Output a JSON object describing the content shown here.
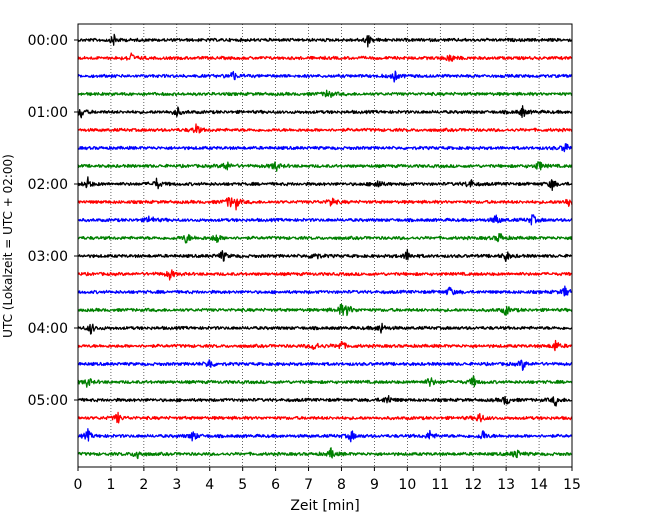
{
  "chart_data": {
    "type": "line",
    "title": "",
    "xlabel": "Zeit  [min]",
    "ylabel": "UTC (Lokalzeit = UTC + 02:00)",
    "xlim": [
      0,
      15
    ],
    "x_ticks": [
      0,
      1,
      2,
      3,
      4,
      5,
      6,
      7,
      8,
      9,
      10,
      11,
      12,
      13,
      14,
      15
    ],
    "x_tick_labels": [
      "0",
      "1",
      "2",
      "3",
      "4",
      "5",
      "6",
      "7",
      "8",
      "9",
      "10",
      "11",
      "12",
      "13",
      "14",
      "15"
    ],
    "grid": "vertical dotted lines at each minute",
    "y_tick_labels": [
      {
        "row": 0,
        "label": "00:00"
      },
      {
        "row": 4,
        "label": "01:00"
      },
      {
        "row": 8,
        "label": "02:00"
      },
      {
        "row": 12,
        "label": "03:00"
      },
      {
        "row": 16,
        "label": "04:00"
      },
      {
        "row": 20,
        "label": "05:00"
      }
    ],
    "trace_colors": [
      "#000000",
      "#ff0000",
      "#0000ff",
      "#008000"
    ],
    "rows": [
      {
        "start": "00:00",
        "color": "#000000",
        "events": [
          1.1,
          8.8
        ]
      },
      {
        "start": "00:15",
        "color": "#ff0000",
        "events": [
          1.6,
          11.3
        ]
      },
      {
        "start": "00:30",
        "color": "#0000ff",
        "events": [
          4.7,
          9.6
        ]
      },
      {
        "start": "00:45",
        "color": "#008000",
        "events": [
          7.6
        ]
      },
      {
        "start": "01:00",
        "color": "#000000",
        "events": [
          0.1,
          3.0,
          13.5
        ]
      },
      {
        "start": "01:15",
        "color": "#ff0000",
        "events": [
          3.6
        ]
      },
      {
        "start": "01:30",
        "color": "#0000ff",
        "events": [
          14.8
        ]
      },
      {
        "start": "01:45",
        "color": "#008000",
        "events": [
          4.5,
          6.0,
          14.0
        ]
      },
      {
        "start": "02:00",
        "color": "#000000",
        "events": [
          0.3,
          2.4,
          9.1,
          11.9,
          14.4
        ]
      },
      {
        "start": "02:15",
        "color": "#ff0000",
        "events": [
          4.6,
          4.8,
          7.7,
          14.9
        ]
      },
      {
        "start": "02:30",
        "color": "#0000ff",
        "events": [
          2.2,
          12.7,
          13.8
        ]
      },
      {
        "start": "02:45",
        "color": "#008000",
        "events": [
          3.3,
          4.2,
          12.8
        ]
      },
      {
        "start": "03:00",
        "color": "#000000",
        "events": [
          4.4,
          7.2,
          10.0,
          13.0
        ]
      },
      {
        "start": "03:15",
        "color": "#ff0000",
        "events": [
          2.8
        ]
      },
      {
        "start": "03:30",
        "color": "#0000ff",
        "events": [
          11.3,
          14.8
        ]
      },
      {
        "start": "03:45",
        "color": "#008000",
        "events": [
          8.0,
          8.2,
          13.0
        ]
      },
      {
        "start": "04:00",
        "color": "#000000",
        "events": [
          0.4,
          9.2
        ]
      },
      {
        "start": "04:15",
        "color": "#ff0000",
        "events": [
          7.2,
          8.0,
          14.5
        ]
      },
      {
        "start": "04:30",
        "color": "#0000ff",
        "events": [
          4.0,
          13.5
        ]
      },
      {
        "start": "04:45",
        "color": "#008000",
        "events": [
          0.3,
          10.7,
          12.0
        ]
      },
      {
        "start": "05:00",
        "color": "#000000",
        "events": [
          9.4,
          13.0,
          14.5
        ]
      },
      {
        "start": "05:15",
        "color": "#ff0000",
        "events": [
          1.2,
          12.2
        ]
      },
      {
        "start": "05:30",
        "color": "#0000ff",
        "events": [
          0.3,
          3.5,
          8.3,
          10.7,
          12.3
        ]
      },
      {
        "start": "05:45",
        "color": "#008000",
        "events": [
          1.8,
          7.7,
          13.3
        ]
      }
    ]
  }
}
